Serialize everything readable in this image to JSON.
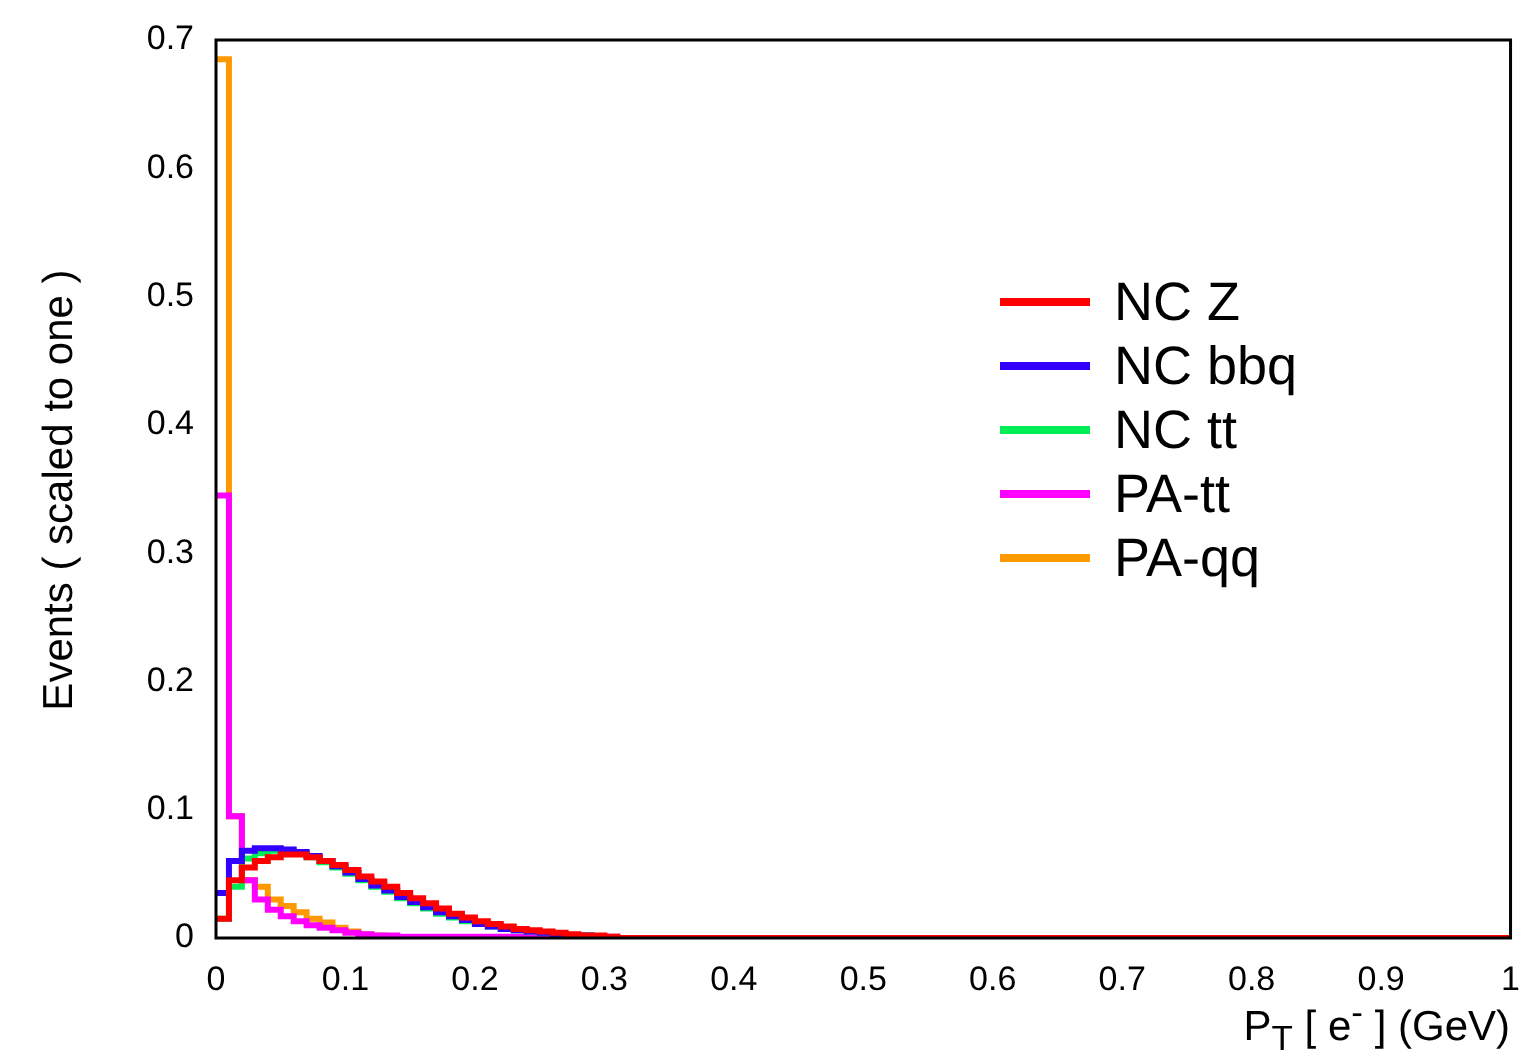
{
  "chart_data": {
    "type": "histogram",
    "xlabel": "P$_{T}$ [ e$^{-}$ ] (GeV)",
    "ylabel": "Events  ( scaled to one )",
    "bins": [
      0,
      0.01,
      0.02,
      0.03,
      0.04,
      0.05,
      0.06,
      0.07,
      0.08,
      0.09,
      0.1,
      0.11,
      0.12,
      0.13,
      0.14,
      0.15,
      0.16,
      0.17,
      0.18,
      0.19,
      0.2,
      0.21,
      0.22,
      0.23,
      0.24,
      0.25,
      0.26,
      0.27,
      0.28,
      0.29,
      0.3,
      0.31,
      0.32,
      0.33,
      0.34,
      0.35,
      0.36,
      0.37,
      0.38,
      0.39,
      0.4,
      0.41,
      0.42,
      0.43,
      0.44,
      0.45,
      0.46,
      0.47,
      0.48,
      0.49,
      0.5,
      0.51,
      0.52,
      0.53,
      0.54,
      0.55,
      0.56,
      0.57,
      0.58,
      0.59,
      0.6,
      0.61,
      0.62,
      0.63,
      0.64,
      0.65,
      0.66,
      0.67,
      0.68,
      0.69,
      0.7,
      0.71,
      0.72,
      0.73,
      0.74,
      0.75,
      0.76,
      0.77,
      0.78,
      0.79,
      0.8,
      0.81,
      0.82,
      0.83,
      0.84,
      0.85,
      0.86,
      0.87,
      0.88,
      0.89,
      0.9,
      0.91,
      0.92,
      0.93,
      0.94,
      0.95,
      0.96,
      0.97,
      0.98,
      0.99,
      1
    ],
    "series": [
      {
        "name": "NC Z",
        "color": "#ff0000",
        "values": [
          0.015,
          0.045,
          0.055,
          0.06,
          0.063,
          0.065,
          0.065,
          0.063,
          0.06,
          0.057,
          0.053,
          0.048,
          0.044,
          0.04,
          0.035,
          0.031,
          0.027,
          0.023,
          0.019,
          0.016,
          0.013,
          0.011,
          0.009,
          0.007,
          0.006,
          0.005,
          0.004,
          0.003,
          0.002,
          0.002,
          0.001,
          0,
          0,
          0,
          0,
          0,
          0,
          0,
          0,
          0,
          0,
          0,
          0,
          0,
          0,
          0,
          0,
          0,
          0,
          0,
          0,
          0,
          0,
          0,
          0,
          0,
          0,
          0,
          0,
          0,
          0,
          0,
          0,
          0,
          0,
          0,
          0,
          0,
          0,
          0,
          0,
          0,
          0,
          0,
          0,
          0,
          0,
          0,
          0,
          0,
          0,
          0,
          0,
          0,
          0,
          0,
          0,
          0,
          0,
          0,
          0,
          0,
          0,
          0,
          0,
          0,
          0,
          0,
          0,
          0
        ]
      },
      {
        "name": "NC bbq",
        "color": "#3300ff",
        "values": [
          0.035,
          0.06,
          0.068,
          0.07,
          0.07,
          0.069,
          0.067,
          0.064,
          0.06,
          0.056,
          0.051,
          0.046,
          0.041,
          0.037,
          0.032,
          0.028,
          0.024,
          0.02,
          0.017,
          0.014,
          0.011,
          0.009,
          0.007,
          0.006,
          0.005,
          0.004,
          0.003,
          0.002,
          0.002,
          0.001,
          0,
          0,
          0,
          0,
          0,
          0,
          0,
          0,
          0,
          0,
          0,
          0,
          0,
          0,
          0,
          0,
          0,
          0,
          0,
          0,
          0,
          0,
          0,
          0,
          0,
          0,
          0,
          0,
          0,
          0,
          0,
          0,
          0,
          0,
          0,
          0,
          0,
          0,
          0,
          0,
          0,
          0,
          0,
          0,
          0,
          0,
          0,
          0,
          0,
          0,
          0,
          0,
          0,
          0,
          0,
          0,
          0,
          0,
          0,
          0,
          0,
          0,
          0,
          0,
          0,
          0,
          0,
          0,
          0,
          0
        ]
      },
      {
        "name": "NC tt",
        "color": "#00ee55",
        "values": [
          0.015,
          0.04,
          0.062,
          0.066,
          0.068,
          0.068,
          0.066,
          0.063,
          0.059,
          0.055,
          0.05,
          0.045,
          0.04,
          0.036,
          0.031,
          0.027,
          0.023,
          0.019,
          0.016,
          0.013,
          0.011,
          0.009,
          0.007,
          0.006,
          0.005,
          0.004,
          0.003,
          0.002,
          0.002,
          0.001,
          0,
          0,
          0,
          0,
          0,
          0,
          0,
          0,
          0,
          0,
          0,
          0,
          0,
          0,
          0,
          0,
          0,
          0,
          0,
          0,
          0,
          0,
          0,
          0,
          0,
          0,
          0,
          0,
          0,
          0,
          0,
          0,
          0,
          0,
          0,
          0,
          0,
          0,
          0,
          0,
          0,
          0,
          0,
          0,
          0,
          0,
          0,
          0,
          0,
          0,
          0,
          0,
          0,
          0,
          0,
          0,
          0,
          0,
          0,
          0,
          0,
          0,
          0,
          0,
          0,
          0,
          0,
          0,
          0,
          0
        ]
      },
      {
        "name": "PA-tt",
        "color": "#ff00ff",
        "values": [
          0.345,
          0.095,
          0.045,
          0.03,
          0.022,
          0.017,
          0.013,
          0.01,
          0.008,
          0.006,
          0.004,
          0.003,
          0.002,
          0.002,
          0.001,
          0.001,
          0.001,
          0.001,
          0.001,
          0.001,
          0.001,
          0.001,
          0.001,
          0.001,
          0.001,
          0.001,
          0.001,
          0.001,
          0.001,
          0.001,
          0.001,
          0,
          0,
          0,
          0,
          0,
          0,
          0,
          0,
          0,
          0,
          0,
          0,
          0,
          0,
          0,
          0,
          0,
          0,
          0,
          0,
          0,
          0,
          0,
          0,
          0,
          0,
          0,
          0,
          0,
          0,
          0,
          0,
          0,
          0,
          0,
          0,
          0,
          0,
          0,
          0,
          0,
          0,
          0,
          0,
          0,
          0,
          0,
          0,
          0,
          0,
          0,
          0,
          0,
          0,
          0,
          0,
          0,
          0,
          0,
          0,
          0,
          0,
          0,
          0,
          0,
          0,
          0,
          0,
          0
        ]
      },
      {
        "name": "PA-qq",
        "color": "#ff9900",
        "values": [
          0.685,
          0.095,
          0.045,
          0.04,
          0.03,
          0.025,
          0.02,
          0.015,
          0.012,
          0.008,
          0.005,
          0.003,
          0.002,
          0.001,
          0,
          0,
          0,
          0,
          0,
          0,
          0,
          0,
          0,
          0,
          0,
          0,
          0,
          0,
          0,
          0,
          0,
          0,
          0,
          0,
          0,
          0,
          0,
          0,
          0,
          0,
          0,
          0,
          0,
          0,
          0,
          0,
          0,
          0,
          0,
          0,
          0,
          0,
          0,
          0,
          0,
          0,
          0,
          0,
          0,
          0,
          0,
          0,
          0,
          0,
          0,
          0,
          0,
          0,
          0,
          0,
          0,
          0,
          0,
          0,
          0,
          0,
          0,
          0,
          0,
          0,
          0,
          0,
          0,
          0,
          0,
          0,
          0,
          0,
          0,
          0,
          0,
          0,
          0,
          0,
          0,
          0,
          0,
          0,
          0,
          0
        ]
      }
    ],
    "xlim": [
      0,
      1
    ],
    "xticks": [
      0,
      0.1,
      0.2,
      0.3,
      0.4,
      0.5,
      0.6,
      0.7,
      0.8,
      0.9,
      1
    ],
    "ylim": [
      0,
      0.7
    ],
    "yticks": [
      0,
      0.1,
      0.2,
      0.3,
      0.4,
      0.5,
      0.6,
      0.7
    ],
    "grid": false,
    "legend": "right"
  }
}
